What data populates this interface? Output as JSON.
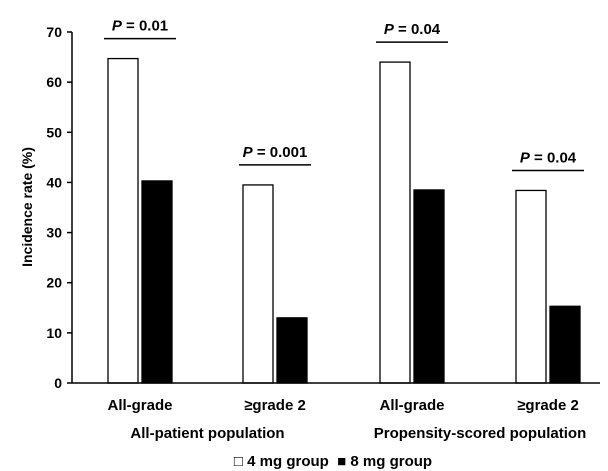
{
  "chart_data": {
    "type": "bar",
    "ylabel": "Incidence rate (%)",
    "ylim": [
      0,
      70
    ],
    "yticks": [
      0,
      10,
      20,
      30,
      40,
      50,
      60,
      70
    ],
    "categories": [
      "All-grade",
      "≥grade 2",
      "All-grade",
      "≥grade 2"
    ],
    "groups": [
      {
        "label": "All-patient population",
        "categories": [
          0,
          1
        ]
      },
      {
        "label": "Propensity-scored population",
        "categories": [
          2,
          3
        ]
      }
    ],
    "series": [
      {
        "name": "4 mg group",
        "fill": "#ffffff",
        "values": [
          64.7,
          39.5,
          64.0,
          38.4
        ]
      },
      {
        "name": "8 mg group",
        "fill": "#000000",
        "values": [
          40.3,
          13.0,
          38.5,
          15.3
        ]
      }
    ],
    "annotations": [
      {
        "category": 0,
        "p_symbol": "P",
        "p_value": " = 0.01"
      },
      {
        "category": 1,
        "p_symbol": "P",
        "p_value": " = 0.001"
      },
      {
        "category": 2,
        "p_symbol": "P",
        "p_value": " = 0.04"
      },
      {
        "category": 3,
        "p_symbol": "P",
        "p_value": " = 0.04"
      }
    ],
    "legend": {
      "position": "bottom",
      "items": [
        {
          "symbol": "□",
          "label": "4 mg group"
        },
        {
          "symbol": "■",
          "label": "8 mg group"
        }
      ]
    },
    "grid": false
  }
}
